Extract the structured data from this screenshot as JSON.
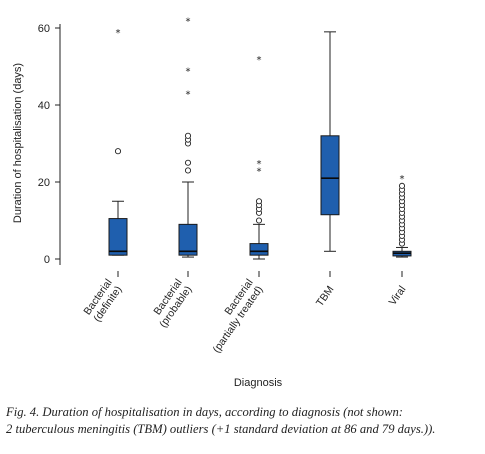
{
  "chart_data": {
    "type": "box",
    "xlabel": "Diagnosis",
    "ylabel": "Duration of hospitalisation (days)",
    "ylim": [
      0,
      60
    ],
    "yticks": [
      0,
      20,
      40,
      60
    ],
    "categories": [
      {
        "lines": [
          "Bacterial",
          "(definite)"
        ]
      },
      {
        "lines": [
          "Bacterial",
          "(probable)"
        ]
      },
      {
        "lines": [
          "Bacterial",
          "(partially treated)"
        ]
      },
      {
        "lines": [
          "TBM"
        ]
      },
      {
        "lines": [
          "Viral"
        ]
      }
    ],
    "boxes": [
      {
        "min": 1,
        "q1": 1,
        "median": 2,
        "q3": 10.5,
        "max": 15,
        "outliers": [
          28
        ],
        "extremes": [
          59
        ]
      },
      {
        "min": 0.5,
        "q1": 1,
        "median": 2,
        "q3": 9,
        "max": 20,
        "outliers": [
          23,
          25,
          30,
          31,
          32
        ],
        "extremes": [
          43,
          49,
          62
        ]
      },
      {
        "min": 0,
        "q1": 1,
        "median": 2,
        "q3": 4,
        "max": 9,
        "outliers": [
          10,
          12,
          13,
          14,
          15
        ],
        "extremes": [
          23,
          25,
          52
        ]
      },
      {
        "min": 2,
        "q1": 11.5,
        "median": 21,
        "q3": 32,
        "max": 59,
        "outliers": [],
        "extremes": []
      },
      {
        "min": 0.5,
        "q1": 0.8,
        "median": 1.5,
        "q3": 2,
        "max": 3,
        "outliers": [
          4,
          5,
          6,
          7,
          8,
          9,
          10,
          11,
          12,
          13,
          14,
          15,
          16,
          17,
          18,
          19
        ],
        "extremes": [
          21
        ]
      }
    ],
    "box_color": "#1f5fae",
    "grid": false
  },
  "caption": {
    "line1": "Fig. 4. Duration of hospitalisation in days, according to diagnosis (not shown:",
    "line2": "2 tuberculous meningitis (TBM) outliers (+1 standard deviation at 86 and 79 days.))."
  }
}
